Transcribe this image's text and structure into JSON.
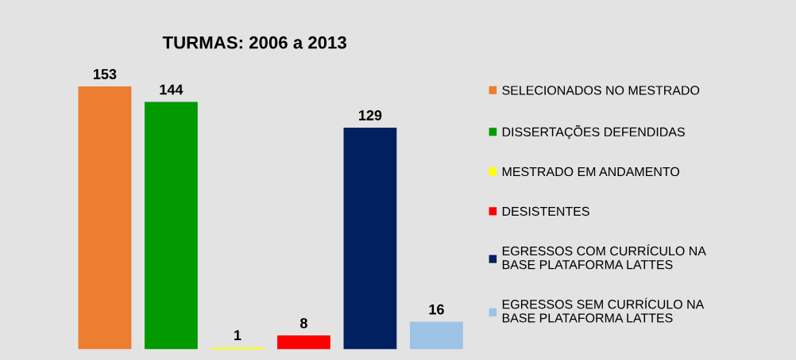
{
  "chart_data": {
    "type": "bar",
    "title": "TURMAS: 2006 a 2013",
    "categories": [
      null,
      null,
      null,
      null,
      null,
      null
    ],
    "stacked": true,
    "series": [
      {
        "name": "SELECIONADOS NO MESTRADO",
        "color": "#ed7d31",
        "values": [
          153,
          0,
          0,
          0,
          0,
          0
        ],
        "value_labels": [
          "153",
          null,
          null,
          null,
          null,
          null
        ]
      },
      {
        "name": "DISSERTAÇÕES DEFENDIDAS",
        "color": "#009900",
        "values": [
          0,
          144,
          0,
          0,
          0,
          0
        ],
        "value_labels": [
          null,
          "144",
          null,
          null,
          null,
          null
        ]
      },
      {
        "name": "MESTRADO EM ANDAMENTO",
        "color": "#ffff00",
        "values": [
          0,
          0,
          1,
          0,
          0,
          0
        ],
        "value_labels": [
          null,
          null,
          "1",
          null,
          null,
          null
        ]
      },
      {
        "name": "DESISTENTES",
        "color": "#ff0000",
        "values": [
          0,
          0,
          0,
          8,
          0,
          0
        ],
        "value_labels": [
          null,
          null,
          null,
          "8",
          null,
          null
        ]
      },
      {
        "name": "EGRESSOS COM CURRÍCULO NA\nBASE PLATAFORMA LATTES",
        "color": "#002060",
        "values": [
          0,
          0,
          0,
          0,
          129,
          0
        ],
        "value_labels": [
          null,
          null,
          null,
          null,
          "129",
          null
        ]
      },
      {
        "name": "EGRESSOS SEM CURRÍCULO NA\nBASE PLATAFORMA LATTES",
        "color": "#9dc3e6",
        "values": [
          0,
          0,
          0,
          0,
          0,
          16
        ],
        "value_labels": [
          null,
          null,
          null,
          null,
          null,
          "16"
        ]
      }
    ],
    "legend": "right",
    "tick_labels": false,
    "grid": false
  }
}
